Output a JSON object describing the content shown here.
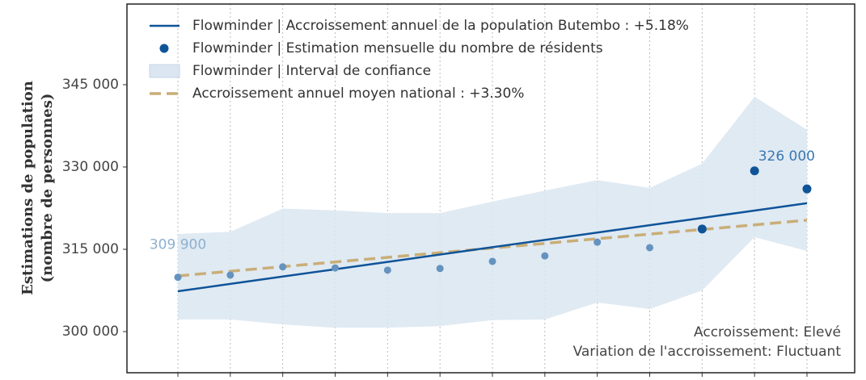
{
  "chart_data": {
    "type": "line",
    "y_label": [
      "Estimations de population",
      "(nombre de personnes)"
    ],
    "categories": [
      null,
      null,
      null,
      null,
      null,
      null,
      null,
      null,
      null,
      null,
      null,
      null,
      null
    ],
    "ylim": [
      292500,
      359700
    ],
    "yticks": [
      {
        "value": 300000,
        "label": "300 000"
      },
      {
        "value": 315000,
        "label": "315 000"
      },
      {
        "value": 330000,
        "label": "330 000"
      },
      {
        "value": 345000,
        "label": "345 000"
      }
    ],
    "grid": "x",
    "legend": "upper left",
    "series": [
      {
        "name": "Flowminder | Accroissement annuel de la population Butembo : +5.18%",
        "kind": "line",
        "color": "#0f5499",
        "values": [
          307350,
          308690,
          310030,
          311360,
          312700,
          314040,
          315380,
          316710,
          318050,
          319390,
          320720,
          322060,
          323400
        ]
      },
      {
        "name": "Flowminder | Estimation mensuelle du nombre de résidents",
        "kind": "scatter",
        "color": "#0f5499",
        "point_colors": [
          "#6593bf",
          "#6593bf",
          "#6593bf",
          "#6593bf",
          "#6593bf",
          "#6593bf",
          "#6593bf",
          "#6593bf",
          "#6593bf",
          "#6593bf",
          "#0f5499",
          "#0f5499",
          "#0f5499"
        ],
        "values": [
          309900,
          310300,
          311800,
          311600,
          311200,
          311500,
          312800,
          313800,
          316300,
          315300,
          318700,
          329300,
          326000
        ],
        "value_labels": [
          "309 900",
          null,
          null,
          null,
          null,
          null,
          null,
          null,
          null,
          null,
          null,
          null,
          "326 000"
        ]
      },
      {
        "name": "Flowminder | Interval de confiance",
        "kind": "band",
        "color": "#dbe6f1",
        "upper": [
          317800,
          318200,
          322400,
          322100,
          321600,
          321600,
          323700,
          325700,
          327600,
          326200,
          330600,
          342800,
          336800
        ],
        "lower": [
          302200,
          302200,
          301300,
          300700,
          300700,
          301000,
          302100,
          302200,
          305300,
          304100,
          307500,
          317200,
          314700
        ]
      },
      {
        "name": "Accroissement annuel moyen national : +3.30%",
        "kind": "dashed",
        "color": "#c9ae78",
        "values": [
          310150,
          311000,
          311840,
          312690,
          313530,
          314380,
          315230,
          316070,
          316920,
          317760,
          318610,
          319450,
          320300
        ]
      }
    ],
    "annotations": [
      "Accroissement: Elevé",
      "Variation de l'accroissement: Fluctuant"
    ]
  }
}
